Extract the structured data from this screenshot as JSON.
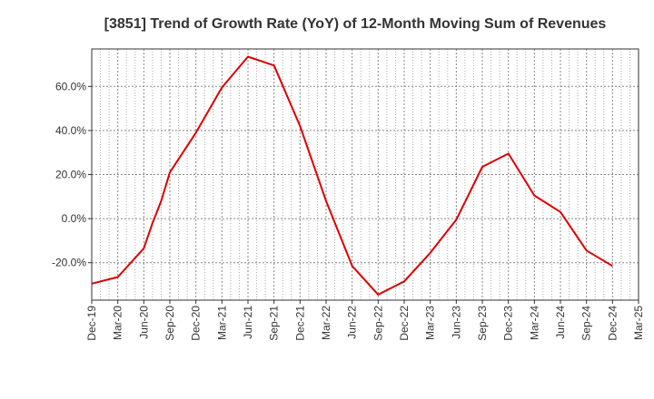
{
  "chart_data": {
    "type": "line",
    "title": "[3851]  Trend of Growth Rate (YoY) of 12-Month Moving Sum of Revenues",
    "xlabel": "",
    "ylabel": "",
    "x_ticks": [
      "Dec-19",
      "Mar-20",
      "Jun-20",
      "Sep-20",
      "Dec-20",
      "Mar-21",
      "Jun-21",
      "Sep-21",
      "Dec-21",
      "Mar-22",
      "Jun-22",
      "Sep-22",
      "Dec-22",
      "Mar-23",
      "Jun-23",
      "Sep-23",
      "Dec-23",
      "Mar-24",
      "Jun-24",
      "Sep-24",
      "Dec-24",
      "Mar-25"
    ],
    "y_ticks": [
      "60.0%",
      "40.0%",
      "20.0%",
      "0.0%",
      "-20.0%"
    ],
    "y_tick_values": [
      60,
      40,
      20,
      0,
      -20
    ],
    "ylim": [
      -37,
      77
    ],
    "grid": true,
    "series": [
      {
        "color": "#dd0000",
        "points": [
          {
            "x": "Dec-19",
            "y": -29.5
          },
          {
            "x": "Mar-20",
            "y": -26.5
          },
          {
            "x": "Jun-20",
            "y": -13.5
          },
          {
            "x": "Jul-20",
            "y": -2.0
          },
          {
            "x": "Aug-20",
            "y": 8.0
          },
          {
            "x": "Sep-20",
            "y": 21.0
          },
          {
            "x": "Dec-20",
            "y": 39.0
          },
          {
            "x": "Mar-21",
            "y": 59.5
          },
          {
            "x": "Jun-21",
            "y": 73.5
          },
          {
            "x": "Sep-21",
            "y": 69.5
          },
          {
            "x": "Dec-21",
            "y": 42.0
          },
          {
            "x": "Mar-22",
            "y": 8.0
          },
          {
            "x": "Jun-22",
            "y": -21.5
          },
          {
            "x": "Sep-22",
            "y": -34.5
          },
          {
            "x": "Dec-22",
            "y": -28.5
          },
          {
            "x": "Mar-23",
            "y": -15.5
          },
          {
            "x": "Jun-23",
            "y": -0.5
          },
          {
            "x": "Sep-23",
            "y": 23.5
          },
          {
            "x": "Dec-23",
            "y": 29.5
          },
          {
            "x": "Mar-24",
            "y": 10.5
          },
          {
            "x": "Jun-24",
            "y": 3.0
          },
          {
            "x": "Sep-24",
            "y": -14.5
          },
          {
            "x": "Dec-24",
            "y": -21.5
          }
        ]
      }
    ]
  }
}
